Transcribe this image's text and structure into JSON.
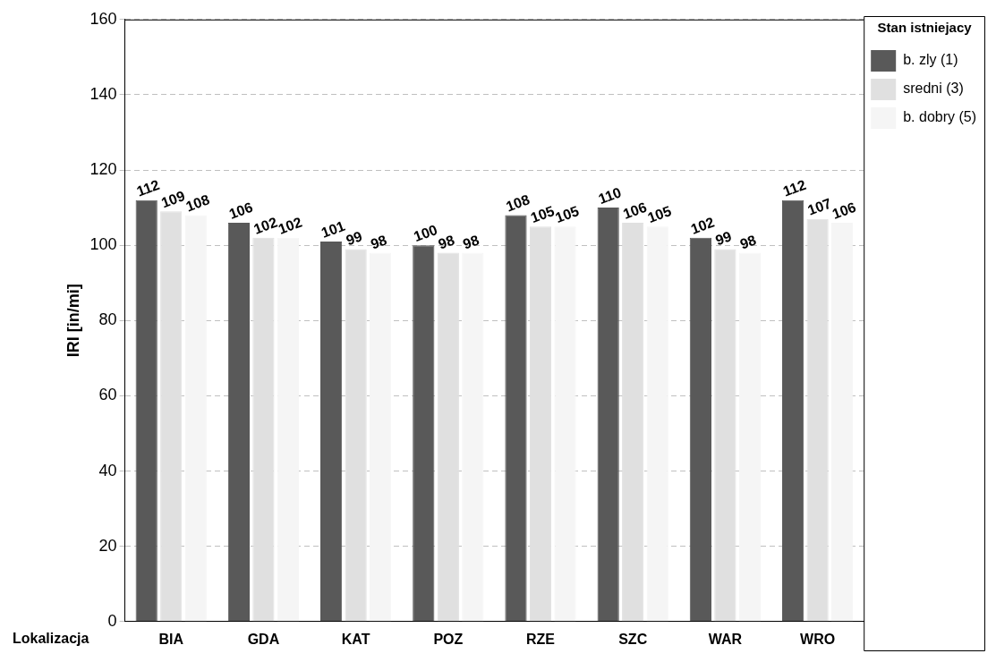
{
  "chart_data": {
    "type": "bar",
    "xlabel": "Lokalizacja",
    "ylabel": "IRI [in/mi]",
    "legend_title": "Stan istniejacy",
    "categories": [
      "BIA",
      "GDA",
      "KAT",
      "POZ",
      "RZE",
      "SZC",
      "WAR",
      "WRO"
    ],
    "series": [
      {
        "name": "b. zly (1)",
        "color": "#595959",
        "values": [
          112,
          106,
          101,
          100,
          108,
          110,
          102,
          112
        ]
      },
      {
        "name": "sredni (3)",
        "color": "#e0e0e0",
        "values": [
          109,
          102,
          99,
          98,
          105,
          106,
          99,
          107
        ]
      },
      {
        "name": "b. dobry (5)",
        "color": "#f5f5f5",
        "values": [
          108,
          102,
          98,
          98,
          105,
          105,
          98,
          106
        ]
      }
    ],
    "ylim": [
      0,
      160
    ],
    "yticks": [
      0,
      20,
      40,
      60,
      80,
      100,
      120,
      140,
      160
    ],
    "grid": "y",
    "legend": "top right",
    "data_labels": true
  }
}
